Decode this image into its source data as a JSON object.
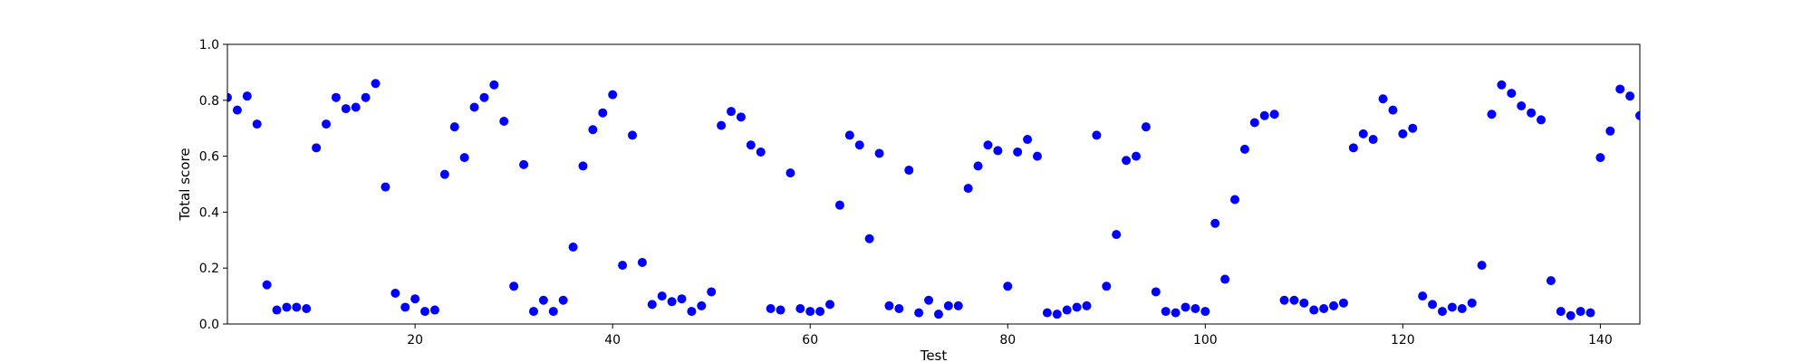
{
  "chart_data": {
    "type": "scatter",
    "title": "",
    "xlabel": "Test",
    "ylabel": "Total score",
    "xlim": [
      1,
      144
    ],
    "ylim": [
      0,
      1.0
    ],
    "grid": false,
    "marker_color": "#0000ff",
    "x_ticks": [
      20,
      40,
      60,
      80,
      100,
      120,
      140
    ],
    "y_ticks": [
      0.0,
      0.2,
      0.4,
      0.6,
      0.8,
      1.0
    ],
    "x_tick_labels": [
      "20",
      "40",
      "60",
      "80",
      "100",
      "120",
      "140"
    ],
    "y_tick_labels": [
      "0.0",
      "0.2",
      "0.4",
      "0.6",
      "0.8",
      "1.0"
    ],
    "series": [
      {
        "x": [
          1,
          2,
          3,
          4,
          5,
          6,
          7,
          8,
          9,
          10,
          11,
          12,
          13,
          14,
          15,
          16,
          17,
          18,
          19,
          20,
          21,
          22,
          23,
          24,
          25,
          26,
          27,
          28,
          29,
          30,
          31,
          32,
          33,
          34,
          35,
          36,
          37,
          38,
          39,
          40,
          41,
          42,
          43,
          44,
          45,
          46,
          47,
          48,
          49,
          50,
          51,
          52,
          53,
          54,
          55,
          56,
          57,
          58,
          59,
          60,
          61,
          62,
          63,
          64,
          65,
          66,
          67,
          68,
          69,
          70,
          71,
          72,
          73,
          74,
          75,
          76,
          77,
          78,
          79,
          80,
          81,
          82,
          83,
          84,
          85,
          86,
          87,
          88,
          89,
          90,
          91,
          92,
          93,
          94,
          95,
          96,
          97,
          98,
          99,
          100,
          101,
          102,
          103,
          104,
          105,
          106,
          107,
          108,
          109,
          110,
          111,
          112,
          113,
          114,
          115,
          116,
          117,
          118,
          119,
          120,
          121,
          122,
          123,
          124,
          125,
          126,
          127,
          128,
          129,
          130,
          131,
          132,
          133,
          134,
          135,
          136,
          137,
          138,
          139,
          140,
          141,
          142,
          143,
          144
        ],
        "y": [
          0.81,
          0.765,
          0.815,
          0.715,
          0.14,
          0.05,
          0.06,
          0.06,
          0.055,
          0.63,
          0.715,
          0.81,
          0.77,
          0.775,
          0.81,
          0.86,
          0.49,
          0.11,
          0.06,
          0.09,
          0.045,
          0.05,
          0.535,
          0.705,
          0.595,
          0.775,
          0.81,
          0.855,
          0.725,
          0.135,
          0.57,
          0.045,
          0.085,
          0.045,
          0.085,
          0.275,
          0.565,
          0.695,
          0.755,
          0.82,
          0.21,
          0.675,
          0.22,
          0.07,
          0.1,
          0.08,
          0.09,
          0.045,
          0.065,
          0.115,
          0.71,
          0.76,
          0.74,
          0.64,
          0.615,
          0.055,
          0.05,
          0.54,
          0.055,
          0.045,
          0.045,
          0.07,
          0.425,
          0.675,
          0.64,
          0.305,
          0.61,
          0.065,
          0.055,
          0.55,
          0.04,
          0.085,
          0.035,
          0.065,
          0.065,
          0.485,
          0.565,
          0.64,
          0.62,
          0.135,
          0.615,
          0.66,
          0.6,
          0.04,
          0.035,
          0.05,
          0.06,
          0.065,
          0.675,
          0.135,
          0.32,
          0.585,
          0.6,
          0.705,
          0.115,
          0.045,
          0.04,
          0.06,
          0.055,
          0.045,
          0.36,
          0.16,
          0.445,
          0.625,
          0.72,
          0.745,
          0.75,
          0.085,
          0.085,
          0.075,
          0.05,
          0.055,
          0.065,
          0.075,
          0.63,
          0.68,
          0.66,
          0.805,
          0.765,
          0.68,
          0.7,
          0.1,
          0.07,
          0.045,
          0.06,
          0.055,
          0.075,
          0.21,
          0.75,
          0.855,
          0.825,
          0.78,
          0.755,
          0.73,
          0.155,
          0.045,
          0.03,
          0.045,
          0.04,
          0.595,
          0.69,
          0.84,
          0.815,
          0.745
        ]
      }
    ]
  }
}
